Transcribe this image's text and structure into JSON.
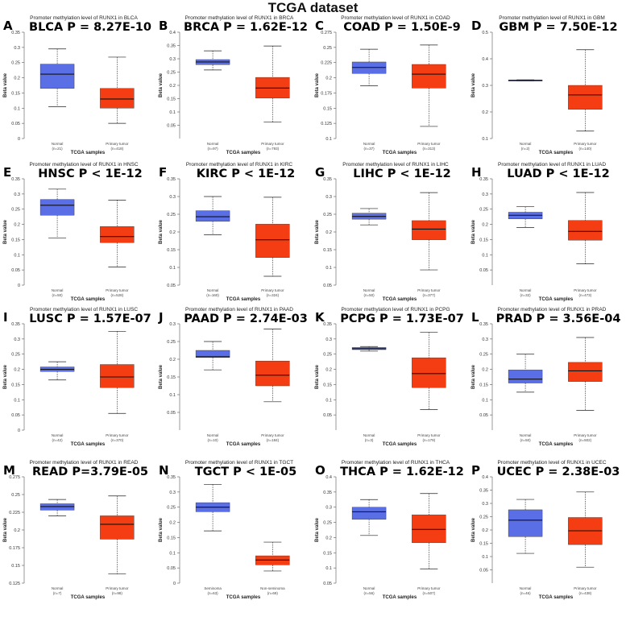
{
  "figure_title": "TCGA dataset",
  "colors": {
    "normal": "#5a6ee6",
    "tumor": "#f43d12",
    "axis": "#555555"
  },
  "chart_data": [
    {
      "letter": "A",
      "type": "box",
      "title": "Promoter methylation level of RUNX1 in BLCA",
      "stat": "BLCA P = 8.27E-10",
      "xlabel": "TCGA samples",
      "ylabel": "Beta value",
      "ylim": [
        0,
        0.35
      ],
      "yticks": [
        0,
        0.05,
        0.1,
        0.15,
        0.2,
        0.25,
        0.3,
        0.35
      ],
      "categories": [
        "Normal",
        "Primary tumor"
      ],
      "counts": [
        "(n=21)",
        "(n=418)"
      ],
      "boxes": [
        {
          "min": 0.105,
          "q1": 0.165,
          "median": 0.212,
          "q3": 0.245,
          "max": 0.295
        },
        {
          "min": 0.05,
          "q1": 0.1,
          "median": 0.13,
          "q3": 0.165,
          "max": 0.268
        }
      ]
    },
    {
      "letter": "B",
      "type": "box",
      "title": "Promoter methylation level of RUNX1 in BRCA",
      "stat": "BRCA P = 1.62E-12",
      "xlabel": "TCGA samples",
      "ylabel": "Beta value",
      "ylim": [
        0,
        0.4
      ],
      "yticks": [
        0.05,
        0.1,
        0.15,
        0.2,
        0.25,
        0.3,
        0.35,
        0.4
      ],
      "categories": [
        "Normal",
        "Primary tumor"
      ],
      "counts": [
        "(n=97)",
        "(n=793)"
      ],
      "boxes": [
        {
          "min": 0.258,
          "q1": 0.278,
          "median": 0.288,
          "q3": 0.297,
          "max": 0.33
        },
        {
          "min": 0.062,
          "q1": 0.152,
          "median": 0.19,
          "q3": 0.23,
          "max": 0.348
        }
      ]
    },
    {
      "letter": "C",
      "type": "box",
      "title": "Promoter methylation level of RUNX1 in COAD",
      "stat": "COAD P = 1.50E-9",
      "xlabel": "TCGA samples",
      "ylabel": "Beta value",
      "ylim": [
        0.1,
        0.275
      ],
      "yticks": [
        0.1,
        0.125,
        0.15,
        0.175,
        0.2,
        0.225,
        0.25,
        0.275
      ],
      "categories": [
        "Normal",
        "Primary tumor"
      ],
      "counts": [
        "(n=37)",
        "(n=313)"
      ],
      "boxes": [
        {
          "min": 0.187,
          "q1": 0.207,
          "median": 0.217,
          "q3": 0.226,
          "max": 0.247
        },
        {
          "min": 0.12,
          "q1": 0.183,
          "median": 0.206,
          "q3": 0.222,
          "max": 0.254
        }
      ]
    },
    {
      "letter": "D",
      "type": "box",
      "title": "Promoter methylation level of RUNX1 in GBM",
      "stat": "GBM P = 7.50E-12",
      "xlabel": "TCGA samples",
      "ylabel": "Beta value",
      "ylim": [
        0.1,
        0.5
      ],
      "yticks": [
        0.1,
        0.2,
        0.3,
        0.4,
        0.5
      ],
      "categories": [
        "Normal",
        "Primary tumor"
      ],
      "counts": [
        "(n=2)",
        "(n=140)"
      ],
      "boxes": [
        {
          "min": 0.317,
          "q1": 0.318,
          "median": 0.319,
          "q3": 0.32,
          "max": 0.321
        },
        {
          "min": 0.128,
          "q1": 0.21,
          "median": 0.264,
          "q3": 0.3,
          "max": 0.434
        }
      ]
    },
    {
      "letter": "E",
      "type": "box",
      "title": "Promoter methylation level of RUNX1 in HNSC",
      "stat": "HNSC P < 1E-12",
      "xlabel": "TCGA samples",
      "ylabel": "Beta value",
      "ylim": [
        0,
        0.35
      ],
      "yticks": [
        0,
        0.05,
        0.1,
        0.15,
        0.2,
        0.25,
        0.3,
        0.35
      ],
      "categories": [
        "Normal",
        "Primary tumor"
      ],
      "counts": [
        "(n=50)",
        "(n=528)"
      ],
      "boxes": [
        {
          "min": 0.155,
          "q1": 0.23,
          "median": 0.263,
          "q3": 0.282,
          "max": 0.316
        },
        {
          "min": 0.06,
          "q1": 0.14,
          "median": 0.16,
          "q3": 0.193,
          "max": 0.28
        }
      ]
    },
    {
      "letter": "F",
      "type": "box",
      "title": "Promoter methylation level of RUNX1 in KIRC",
      "stat": "KIRC P < 1E-12",
      "xlabel": "TCGA samples",
      "ylabel": "Beta value",
      "ylim": [
        0.05,
        0.35
      ],
      "yticks": [
        0.05,
        0.1,
        0.15,
        0.2,
        0.25,
        0.3,
        0.35
      ],
      "categories": [
        "Normal",
        "Primary tumor"
      ],
      "counts": [
        "(n=160)",
        "(n=324)"
      ],
      "boxes": [
        {
          "min": 0.192,
          "q1": 0.23,
          "median": 0.243,
          "q3": 0.26,
          "max": 0.3
        },
        {
          "min": 0.075,
          "q1": 0.128,
          "median": 0.178,
          "q3": 0.222,
          "max": 0.298
        }
      ]
    },
    {
      "letter": "G",
      "type": "box",
      "title": "Promoter methylation level of RUNX1 in LIHC",
      "stat": "LIHC P < 1E-12",
      "xlabel": "TCGA samples",
      "ylabel": "Beta value",
      "ylim": [
        0.05,
        0.35
      ],
      "yticks": [
        0.05,
        0.1,
        0.15,
        0.2,
        0.25,
        0.3,
        0.35
      ],
      "categories": [
        "Normal",
        "Primary tumor"
      ],
      "counts": [
        "(n=50)",
        "(n=377)"
      ],
      "boxes": [
        {
          "min": 0.22,
          "q1": 0.236,
          "median": 0.244,
          "q3": 0.253,
          "max": 0.266
        },
        {
          "min": 0.093,
          "q1": 0.178,
          "median": 0.208,
          "q3": 0.232,
          "max": 0.311
        }
      ]
    },
    {
      "letter": "H",
      "type": "box",
      "title": "Promoter methylation level of RUNX1 in LUAD",
      "stat": "LUAD P < 1E-12",
      "xlabel": "TCGA samples",
      "ylabel": "Beta value",
      "ylim": [
        0,
        0.35
      ],
      "yticks": [
        0.05,
        0.1,
        0.15,
        0.2,
        0.25,
        0.3,
        0.35
      ],
      "categories": [
        "Normal",
        "Primary tumor"
      ],
      "counts": [
        "(n=32)",
        "(n=473)"
      ],
      "boxes": [
        {
          "min": 0.19,
          "q1": 0.218,
          "median": 0.23,
          "q3": 0.24,
          "max": 0.258
        },
        {
          "min": 0.07,
          "q1": 0.148,
          "median": 0.177,
          "q3": 0.213,
          "max": 0.305
        }
      ]
    },
    {
      "letter": "I",
      "type": "box",
      "title": "Promoter methylation level of RUNX1 in LUSC",
      "stat": "LUSC P = 1.57E-07",
      "xlabel": "TCGA samples",
      "ylabel": "Beta value",
      "ylim": [
        0,
        0.35
      ],
      "yticks": [
        0,
        0.05,
        0.1,
        0.15,
        0.2,
        0.25,
        0.3,
        0.35
      ],
      "categories": [
        "Normal",
        "Primary tumor"
      ],
      "counts": [
        "(n=42)",
        "(n=370)"
      ],
      "boxes": [
        {
          "min": 0.165,
          "q1": 0.193,
          "median": 0.2,
          "q3": 0.208,
          "max": 0.225
        },
        {
          "min": 0.055,
          "q1": 0.14,
          "median": 0.175,
          "q3": 0.216,
          "max": 0.325
        }
      ]
    },
    {
      "letter": "J",
      "type": "box",
      "title": "Promoter methylation level of RUNX1 in PAAD",
      "stat": "PAAD P = 2.74E-03",
      "xlabel": "TCGA samples",
      "ylabel": "Beta value",
      "ylim": [
        0,
        0.3
      ],
      "yticks": [
        0.05,
        0.1,
        0.15,
        0.2,
        0.25,
        0.3
      ],
      "categories": [
        "Normal",
        "Primary tumor"
      ],
      "counts": [
        "(n=10)",
        "(n=184)"
      ],
      "boxes": [
        {
          "min": 0.17,
          "q1": 0.205,
          "median": 0.207,
          "q3": 0.225,
          "max": 0.25
        },
        {
          "min": 0.08,
          "q1": 0.125,
          "median": 0.155,
          "q3": 0.195,
          "max": 0.285
        }
      ]
    },
    {
      "letter": "K",
      "type": "box",
      "title": "Promoter methylation level of RUNX1 in PCPG",
      "stat": "PCPG P = 1.73E-07",
      "xlabel": "TCGA samples",
      "ylabel": "Beta value",
      "ylim": [
        0,
        0.35
      ],
      "yticks": [
        0.05,
        0.1,
        0.15,
        0.2,
        0.25,
        0.3,
        0.35
      ],
      "categories": [
        "Normal",
        "Primary tumor"
      ],
      "counts": [
        "(n=3)",
        "(n=179)"
      ],
      "boxes": [
        {
          "min": 0.26,
          "q1": 0.265,
          "median": 0.268,
          "q3": 0.272,
          "max": 0.275
        },
        {
          "min": 0.068,
          "q1": 0.14,
          "median": 0.186,
          "q3": 0.238,
          "max": 0.322
        }
      ]
    },
    {
      "letter": "L",
      "type": "box",
      "title": "Promoter methylation level of RUNX1 in PRAD",
      "stat": "PRAD P = 3.56E-04",
      "xlabel": "TCGA samples",
      "ylabel": "Beta value",
      "ylim": [
        0,
        0.35
      ],
      "yticks": [
        0.05,
        0.1,
        0.15,
        0.2,
        0.25,
        0.3,
        0.35
      ],
      "categories": [
        "Normal",
        "Primary tumor"
      ],
      "counts": [
        "(n=50)",
        "(n=502)"
      ],
      "boxes": [
        {
          "min": 0.125,
          "q1": 0.155,
          "median": 0.168,
          "q3": 0.198,
          "max": 0.25
        },
        {
          "min": 0.065,
          "q1": 0.16,
          "median": 0.195,
          "q3": 0.223,
          "max": 0.305
        }
      ]
    },
    {
      "letter": "M",
      "type": "box",
      "title": "Promoter methylation level of RUNX1 in READ",
      "stat": "READ P=3.79E-05",
      "xlabel": "TCGA samples",
      "ylabel": "Beta value",
      "ylim": [
        0.125,
        0.275
      ],
      "yticks": [
        0.125,
        0.15,
        0.175,
        0.2,
        0.225,
        0.25,
        0.275
      ],
      "categories": [
        "Normal",
        "Primary tumor"
      ],
      "counts": [
        "(n=7)",
        "(n=98)"
      ],
      "boxes": [
        {
          "min": 0.22,
          "q1": 0.228,
          "median": 0.233,
          "q3": 0.237,
          "max": 0.243
        },
        {
          "min": 0.138,
          "q1": 0.187,
          "median": 0.208,
          "q3": 0.22,
          "max": 0.248
        }
      ]
    },
    {
      "letter": "N",
      "type": "box",
      "title": "Promoter methylation level of RUNX1 in TGCT",
      "stat": "TGCT P < 1E-05",
      "xlabel": "TCGA samples",
      "ylabel": "Beta value",
      "ylim": [
        0,
        0.35
      ],
      "yticks": [
        0,
        0.05,
        0.1,
        0.15,
        0.2,
        0.25,
        0.3,
        0.35
      ],
      "categories": [
        "Seminoma",
        "Non-seminoma"
      ],
      "counts": [
        "(n=63)",
        "(n=69)"
      ],
      "boxes": [
        {
          "min": 0.172,
          "q1": 0.235,
          "median": 0.25,
          "q3": 0.265,
          "max": 0.325
        },
        {
          "min": 0.04,
          "q1": 0.06,
          "median": 0.076,
          "q3": 0.09,
          "max": 0.135
        }
      ]
    },
    {
      "letter": "O",
      "type": "box",
      "title": "Promoter methylation level of RUNX1 in THCA",
      "stat": "THCA P = 1.62E-12",
      "xlabel": "TCGA samples",
      "ylabel": "Beta value",
      "ylim": [
        0.05,
        0.4
      ],
      "yticks": [
        0.05,
        0.1,
        0.15,
        0.2,
        0.25,
        0.3,
        0.35,
        0.4
      ],
      "categories": [
        "Normal",
        "Primary tumor"
      ],
      "counts": [
        "(n=56)",
        "(n=507)"
      ],
      "boxes": [
        {
          "min": 0.207,
          "q1": 0.26,
          "median": 0.285,
          "q3": 0.3,
          "max": 0.325
        },
        {
          "min": 0.097,
          "q1": 0.183,
          "median": 0.227,
          "q3": 0.275,
          "max": 0.345
        }
      ]
    },
    {
      "letter": "P",
      "type": "box",
      "title": "Promoter methylation level of RUNX1 in UCEC",
      "stat": "UCEC P = 2.38E-03",
      "xlabel": "TCGA samples",
      "ylabel": "Beta value",
      "ylim": [
        0,
        0.4
      ],
      "yticks": [
        0.05,
        0.1,
        0.15,
        0.2,
        0.25,
        0.3,
        0.35,
        0.4
      ],
      "categories": [
        "Normal",
        "Primary tumor"
      ],
      "counts": [
        "(n=46)",
        "(n=438)"
      ],
      "boxes": [
        {
          "min": 0.112,
          "q1": 0.175,
          "median": 0.237,
          "q3": 0.276,
          "max": 0.315
        },
        {
          "min": 0.06,
          "q1": 0.145,
          "median": 0.197,
          "q3": 0.247,
          "max": 0.343
        }
      ]
    }
  ]
}
